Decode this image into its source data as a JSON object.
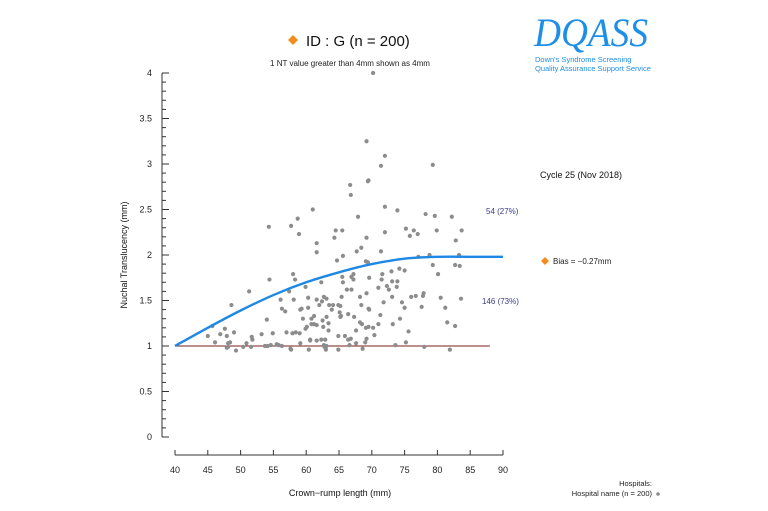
{
  "header": {
    "title": "ID : G (n = 200)",
    "note": "1 NT value greater than 4mm shown as 4mm"
  },
  "logo": {
    "name": "DQASS",
    "line1": "Down's Syndrome Screening",
    "line2": "Quality Assurance Support Service"
  },
  "side": {
    "cycle": "Cycle 25 (Nov 2018)",
    "bias": "Bias = −0.27mm",
    "above_count": "54 (27%)",
    "below_count": "146 (73%)"
  },
  "legend": {
    "heading": "Hospitals:",
    "entry": "Hospital name (n = 200)"
  },
  "colors": {
    "points": "#8c8c8c",
    "curve": "#1e88e5",
    "reference_line": "#7a1f1f",
    "marker": "#f28c1e",
    "logo": "#1e8fe6",
    "counts": "#3b3b8f"
  },
  "chart_data": {
    "type": "scatter",
    "xlabel": "Crown−rump length (mm)",
    "ylabel": "Nuchal Translucency (mm)",
    "xlim": [
      40,
      90
    ],
    "ylim": [
      0,
      4
    ],
    "xticks": [
      "40",
      "45",
      "50",
      "55",
      "60",
      "65",
      "70",
      "75",
      "80",
      "85",
      "90"
    ],
    "yticks": [
      "0",
      "0.5",
      "1",
      "1.5",
      "2",
      "2.5",
      "3",
      "3.5",
      "4"
    ],
    "grid": false,
    "legend_placement": "bottom-right",
    "reference_line": {
      "y": 1,
      "x": [
        40,
        88
      ]
    },
    "curve": {
      "x": [
        40,
        45,
        50,
        55,
        60,
        65,
        70,
        75,
        80,
        85,
        90
      ],
      "y": [
        1.0,
        1.2,
        1.39,
        1.56,
        1.7,
        1.81,
        1.9,
        1.96,
        1.98,
        1.98,
        1.98
      ]
    },
    "points": [
      [
        66.7,
        2.77
      ],
      [
        66.8,
        2.66
      ],
      [
        69.4,
        2.81
      ],
      [
        72.0,
        2.53
      ],
      [
        73.9,
        2.49
      ],
      [
        61.0,
        2.5
      ],
      [
        54.3,
        2.31
      ],
      [
        57.7,
        2.32
      ],
      [
        58.7,
        2.4
      ],
      [
        58.9,
        2.23
      ],
      [
        64.5,
        2.27
      ],
      [
        65.5,
        2.27
      ],
      [
        64.3,
        2.19
      ],
      [
        67.9,
        2.42
      ],
      [
        61.6,
        2.13
      ],
      [
        61.6,
        2.03
      ],
      [
        65.6,
        1.99
      ],
      [
        64.7,
        1.94
      ],
      [
        67.7,
        2.04
      ],
      [
        68.4,
        2.08
      ],
      [
        69.2,
        2.19
      ],
      [
        72.0,
        2.25
      ],
      [
        71.4,
        2.04
      ],
      [
        69.1,
        1.93
      ],
      [
        69.4,
        1.92
      ],
      [
        75.2,
        2.29
      ],
      [
        75.8,
        2.21
      ],
      [
        76.4,
        2.27
      ],
      [
        77.0,
        2.23
      ],
      [
        78.2,
        2.45
      ],
      [
        79.6,
        2.43
      ],
      [
        79.9,
        2.27
      ],
      [
        82.2,
        2.42
      ],
      [
        83.7,
        2.27
      ],
      [
        82.8,
        2.16
      ],
      [
        78.8,
        2.0
      ],
      [
        79.3,
        1.89
      ],
      [
        80.1,
        1.79
      ],
      [
        82.7,
        1.89
      ],
      [
        83.4,
        1.88
      ],
      [
        83.3,
        2.0
      ],
      [
        77.1,
        1.98
      ],
      [
        75.0,
        1.83
      ],
      [
        74.2,
        1.85
      ],
      [
        73.0,
        1.82
      ],
      [
        71.6,
        1.79
      ],
      [
        71.5,
        1.73
      ],
      [
        73.1,
        1.71
      ],
      [
        73.9,
        1.71
      ],
      [
        71.0,
        1.64
      ],
      [
        72.3,
        1.66
      ],
      [
        72.6,
        1.62
      ],
      [
        71.8,
        1.48
      ],
      [
        73.1,
        1.54
      ],
      [
        74.6,
        1.48
      ],
      [
        75.0,
        1.42
      ],
      [
        76.0,
        1.54
      ],
      [
        76.7,
        1.55
      ],
      [
        77.8,
        1.55
      ],
      [
        77.9,
        1.58
      ],
      [
        77.6,
        1.43
      ],
      [
        80.5,
        1.53
      ],
      [
        81.2,
        1.42
      ],
      [
        81.5,
        1.26
      ],
      [
        82.7,
        1.22
      ],
      [
        83.6,
        1.52
      ],
      [
        75.6,
        1.16
      ],
      [
        75.2,
        1.04
      ],
      [
        73.6,
        1.01
      ],
      [
        78.0,
        0.99
      ],
      [
        81.9,
        0.96
      ],
      [
        73.2,
        1.24
      ],
      [
        71.0,
        1.24
      ],
      [
        71.3,
        1.34
      ],
      [
        70.2,
        1.2
      ],
      [
        69.5,
        1.21
      ],
      [
        69.1,
        1.2
      ],
      [
        69.2,
        1.08
      ],
      [
        69.0,
        1.04
      ],
      [
        68.6,
        0.97
      ],
      [
        67.6,
        1.03
      ],
      [
        67.3,
        1.32
      ],
      [
        66.4,
        1.35
      ],
      [
        65.3,
        1.33
      ],
      [
        65.1,
        1.37
      ],
      [
        65.2,
        1.44
      ],
      [
        64.9,
        1.45
      ],
      [
        63.9,
        1.4
      ],
      [
        65.4,
        1.54
      ],
      [
        66.2,
        1.62
      ],
      [
        66.9,
        1.62
      ],
      [
        65.6,
        1.7
      ],
      [
        65.5,
        1.76
      ],
      [
        66.9,
        1.76
      ],
      [
        67.2,
        1.79
      ],
      [
        67.2,
        1.73
      ],
      [
        69.6,
        1.75
      ],
      [
        68.2,
        1.54
      ],
      [
        68.4,
        1.45
      ],
      [
        69.2,
        1.58
      ],
      [
        69.5,
        1.41
      ],
      [
        69.6,
        1.4
      ],
      [
        68.2,
        1.26
      ],
      [
        68.5,
        1.24
      ],
      [
        67.6,
        1.17
      ],
      [
        65.9,
        1.11
      ],
      [
        66.8,
        1.08
      ],
      [
        64.9,
        1.11
      ],
      [
        65.2,
        1.32
      ],
      [
        66.6,
        1.01
      ],
      [
        64.9,
        0.96
      ],
      [
        63.0,
        0.96
      ],
      [
        63.1,
        1.0
      ],
      [
        62.9,
        1.07
      ],
      [
        62.3,
        1.07
      ],
      [
        62.7,
        1.01
      ],
      [
        63.4,
        1.17
      ],
      [
        63.4,
        1.25
      ],
      [
        62.5,
        1.28
      ],
      [
        61.2,
        1.24
      ],
      [
        60.8,
        1.24
      ],
      [
        60.8,
        1.3
      ],
      [
        60.1,
        1.21
      ],
      [
        59.9,
        1.19
      ],
      [
        60.6,
        1.07
      ],
      [
        60.4,
        0.96
      ],
      [
        59.1,
        1.03
      ],
      [
        59.0,
        1.14
      ],
      [
        58.4,
        1.15
      ],
      [
        57.9,
        1.14
      ],
      [
        57.7,
        0.96
      ],
      [
        57.6,
        0.97
      ],
      [
        55.8,
        1.01
      ],
      [
        56.3,
        1.0
      ],
      [
        54.6,
        1.01
      ],
      [
        54.1,
        1.0
      ],
      [
        53.7,
        1.0
      ],
      [
        53.2,
        1.13
      ],
      [
        54.9,
        1.14
      ],
      [
        54.0,
        1.29
      ],
      [
        51.7,
        1.1
      ],
      [
        51.8,
        1.07
      ],
      [
        50.9,
        1.03
      ],
      [
        50.4,
        0.99
      ],
      [
        51.6,
        0.99
      ],
      [
        49.3,
        0.95
      ],
      [
        48.1,
        1.03
      ],
      [
        48.1,
        0.99
      ],
      [
        47.9,
        0.98
      ],
      [
        48.4,
        1.04
      ],
      [
        47.9,
        1.11
      ],
      [
        49.0,
        1.15
      ],
      [
        47.6,
        1.19
      ],
      [
        46.9,
        1.13
      ],
      [
        46.1,
        1.04
      ],
      [
        45.0,
        1.11
      ],
      [
        45.7,
        1.22
      ],
      [
        48.6,
        1.45
      ],
      [
        51.3,
        1.6
      ],
      [
        54.4,
        1.73
      ],
      [
        58.0,
        1.79
      ],
      [
        58.3,
        1.73
      ],
      [
        56.1,
        1.51
      ],
      [
        56.3,
        1.41
      ],
      [
        56.8,
        1.38
      ],
      [
        58.1,
        1.51
      ],
      [
        59.1,
        1.4
      ],
      [
        59.3,
        1.41
      ],
      [
        59.9,
        1.65
      ],
      [
        60.3,
        1.53
      ],
      [
        60.3,
        1.42
      ],
      [
        61.6,
        1.51
      ],
      [
        62.0,
        1.45
      ],
      [
        62.4,
        1.49
      ],
      [
        62.7,
        1.54
      ],
      [
        62.3,
        1.7
      ],
      [
        63.1,
        1.52
      ],
      [
        64.1,
        1.45
      ],
      [
        63.5,
        1.45
      ],
      [
        62.6,
        1.21
      ],
      [
        61.6,
        1.23
      ],
      [
        61.2,
        1.33
      ],
      [
        63.1,
        1.32
      ],
      [
        57.0,
        1.15
      ],
      [
        55.5,
        1.02
      ],
      [
        60.6,
        1.06
      ],
      [
        62.8,
        0.99
      ],
      [
        66.4,
        1.07
      ],
      [
        73.8,
        1.65
      ],
      [
        70.2,
        4.0
      ],
      [
        69.2,
        3.25
      ],
      [
        72.0,
        3.09
      ],
      [
        71.4,
        2.98
      ],
      [
        79.3,
        2.99
      ],
      [
        69.5,
        2.82
      ],
      [
        61.6,
        1.06
      ],
      [
        70.4,
        1.12
      ],
      [
        74.3,
        1.3
      ],
      [
        57.4,
        1.6
      ],
      [
        59.5,
        1.3
      ]
    ]
  }
}
